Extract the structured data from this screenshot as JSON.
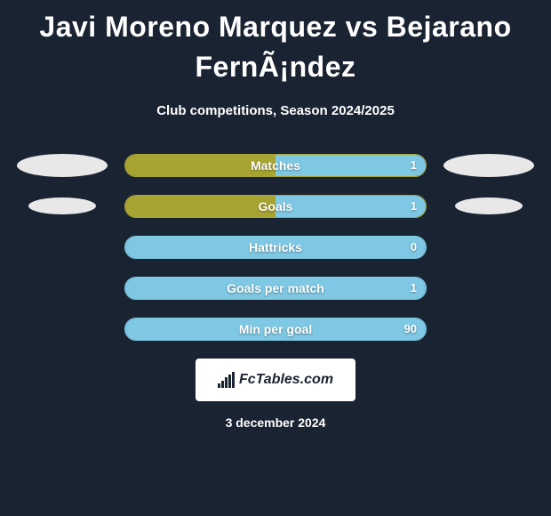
{
  "title": "Javi Moreno Marquez vs Bejarano FernÃ¡ndez",
  "subtitle": "Club competitions, Season 2024/2025",
  "colors": {
    "background": "#1a2332",
    "player_a": "#a8a432",
    "player_b": "#7ec8e3",
    "ellipse_a": "#e8e8e8",
    "ellipse_b": "#e8e8e8",
    "text": "#ffffff"
  },
  "rows": [
    {
      "label": "Matches",
      "left_value": "",
      "right_value": "1",
      "left_pct": 50,
      "right_pct": 50,
      "left_color": "#a8a432",
      "right_color": "#7ec8e3",
      "border_color": "#a8a432",
      "show_left_ellipse": true,
      "show_right_ellipse": true,
      "ellipse_a_color": "#e8e8e8",
      "ellipse_b_color": "#e8e8e8"
    },
    {
      "label": "Goals",
      "left_value": "",
      "right_value": "1",
      "left_pct": 50,
      "right_pct": 50,
      "left_color": "#a8a432",
      "right_color": "#7ec8e3",
      "border_color": "#a8a432",
      "show_left_ellipse": true,
      "show_right_ellipse": true,
      "ellipse_a_color": "#e8e8e8",
      "ellipse_b_color": "#e8e8e8",
      "ellipse_scale": 0.75
    },
    {
      "label": "Hattricks",
      "left_value": "",
      "right_value": "0",
      "left_pct": 0,
      "right_pct": 100,
      "left_color": "#a8a432",
      "right_color": "#7ec8e3",
      "border_color": "#7ec8e3",
      "show_left_ellipse": false,
      "show_right_ellipse": false
    },
    {
      "label": "Goals per match",
      "left_value": "",
      "right_value": "1",
      "left_pct": 0,
      "right_pct": 100,
      "left_color": "#a8a432",
      "right_color": "#7ec8e3",
      "border_color": "#7ec8e3",
      "show_left_ellipse": false,
      "show_right_ellipse": false
    },
    {
      "label": "Min per goal",
      "left_value": "",
      "right_value": "90",
      "left_pct": 0,
      "right_pct": 100,
      "left_color": "#a8a432",
      "right_color": "#7ec8e3",
      "border_color": "#7ec8e3",
      "show_left_ellipse": false,
      "show_right_ellipse": false
    }
  ],
  "logo": {
    "text": "FcTables.com"
  },
  "date": "3 december 2024"
}
